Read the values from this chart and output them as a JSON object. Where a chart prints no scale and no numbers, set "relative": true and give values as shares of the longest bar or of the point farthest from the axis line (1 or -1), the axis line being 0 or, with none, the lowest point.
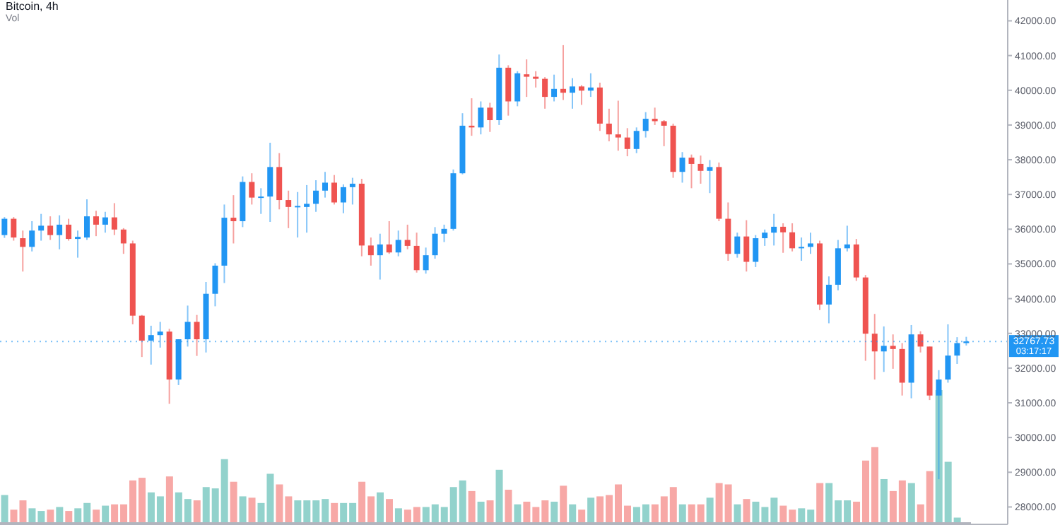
{
  "chart_data": [
    {
      "type": "candlestick",
      "title": "Bitcoin, 4h",
      "categories": [
        null,
        null,
        null,
        null,
        null,
        null,
        null,
        null,
        null,
        null,
        null,
        null,
        null,
        null,
        null,
        null,
        null,
        null,
        null,
        null,
        null,
        null,
        null,
        null,
        null,
        null,
        null,
        null,
        null,
        null,
        null,
        null,
        null,
        null,
        null,
        null,
        null,
        null,
        null,
        null,
        null,
        null,
        null,
        null,
        null,
        null,
        null,
        null,
        null,
        null,
        null,
        null,
        null,
        null,
        null,
        null,
        null,
        null,
        null,
        null,
        null,
        null,
        null,
        null,
        null,
        null,
        null,
        null,
        null,
        null,
        null,
        null,
        null,
        null,
        null,
        null,
        null,
        null,
        null,
        null,
        null,
        null,
        null,
        null,
        null,
        null,
        null,
        null,
        null,
        null,
        null,
        null,
        null,
        null,
        null,
        null,
        null,
        null,
        null,
        null,
        null,
        null,
        null,
        null,
        null,
        null
      ],
      "ohlc": [
        [
          35830,
          36350,
          35750,
          36300
        ],
        [
          36300,
          36350,
          35670,
          35760
        ],
        [
          35740,
          35960,
          34780,
          35490
        ],
        [
          35490,
          36230,
          35360,
          35960
        ],
        [
          35960,
          36440,
          35670,
          36100
        ],
        [
          36100,
          36370,
          35690,
          35830
        ],
        [
          35830,
          36400,
          35420,
          36130
        ],
        [
          36130,
          36300,
          35670,
          35720
        ],
        [
          35720,
          35960,
          35180,
          35780
        ],
        [
          35760,
          36860,
          35690,
          36370
        ],
        [
          36370,
          36530,
          35800,
          36130
        ],
        [
          36130,
          36500,
          35900,
          36340
        ],
        [
          36340,
          36750,
          35830,
          35990
        ],
        [
          35990,
          36030,
          35290,
          35590
        ],
        [
          35590,
          35670,
          33260,
          33510
        ],
        [
          33510,
          33530,
          32320,
          32790
        ],
        [
          32790,
          33220,
          32100,
          32950
        ],
        [
          32950,
          33330,
          32590,
          33050
        ],
        [
          33050,
          33130,
          30970,
          31670
        ],
        [
          31670,
          32830,
          31510,
          32830
        ],
        [
          32830,
          33800,
          32620,
          33330
        ],
        [
          33330,
          33530,
          32350,
          32830
        ],
        [
          32830,
          34480,
          32450,
          34140
        ],
        [
          34140,
          35020,
          33780,
          34950
        ],
        [
          34950,
          36710,
          34450,
          36330
        ],
        [
          36330,
          36980,
          35590,
          36230
        ],
        [
          36230,
          37520,
          36060,
          37360
        ],
        [
          37360,
          37610,
          36710,
          36910
        ],
        [
          36910,
          37180,
          36440,
          36940
        ],
        [
          36940,
          38490,
          36210,
          37790
        ],
        [
          37790,
          38190,
          36570,
          36840
        ],
        [
          36840,
          37110,
          36030,
          36640
        ],
        [
          36640,
          37070,
          35760,
          36670
        ],
        [
          36640,
          37270,
          35900,
          36730
        ],
        [
          36730,
          37410,
          36500,
          37110
        ],
        [
          37110,
          37650,
          36910,
          37340
        ],
        [
          37340,
          37560,
          36710,
          36770
        ],
        [
          36770,
          37290,
          36460,
          37210
        ],
        [
          37210,
          37480,
          36710,
          37310
        ],
        [
          37310,
          37450,
          35220,
          35530
        ],
        [
          35530,
          35760,
          34950,
          35250
        ],
        [
          35250,
          35870,
          34550,
          35560
        ],
        [
          35560,
          36230,
          35290,
          35330
        ],
        [
          35330,
          35960,
          35220,
          35690
        ],
        [
          35690,
          36130,
          35420,
          35520
        ],
        [
          35520,
          35900,
          34750,
          34820
        ],
        [
          34820,
          35470,
          34720,
          35250
        ],
        [
          35250,
          36060,
          35150,
          35870
        ],
        [
          35870,
          36130,
          35630,
          36010
        ],
        [
          36010,
          37720,
          35960,
          37610
        ],
        [
          37610,
          39340,
          37580,
          38980
        ],
        [
          38980,
          39770,
          38690,
          38930
        ],
        [
          38930,
          39680,
          38730,
          39500
        ],
        [
          39500,
          39640,
          38800,
          39140
        ],
        [
          39140,
          41030,
          39000,
          40650
        ],
        [
          40650,
          40720,
          39270,
          39680
        ],
        [
          39680,
          40550,
          39540,
          40490
        ],
        [
          40460,
          40890,
          39810,
          40390
        ],
        [
          40390,
          40550,
          40080,
          40330
        ],
        [
          40330,
          40380,
          39470,
          39810
        ],
        [
          39810,
          40450,
          39680,
          40040
        ],
        [
          40040,
          41300,
          39720,
          39930
        ],
        [
          39930,
          40350,
          39470,
          40110
        ],
        [
          40110,
          40150,
          39580,
          39990
        ],
        [
          39990,
          40490,
          39810,
          40080
        ],
        [
          40080,
          40220,
          38830,
          39040
        ],
        [
          39040,
          39470,
          38530,
          38730
        ],
        [
          38730,
          39700,
          38260,
          38640
        ],
        [
          38640,
          38910,
          38100,
          38310
        ],
        [
          38310,
          38930,
          38190,
          38830
        ],
        [
          38830,
          39370,
          38640,
          39180
        ],
        [
          39180,
          39500,
          39000,
          39110
        ],
        [
          39110,
          39140,
          38390,
          38980
        ],
        [
          38980,
          39040,
          37480,
          37650
        ],
        [
          37650,
          38220,
          37340,
          38060
        ],
        [
          38060,
          38150,
          37180,
          37880
        ],
        [
          37880,
          38120,
          37310,
          37680
        ],
        [
          37680,
          37990,
          37040,
          37790
        ],
        [
          37790,
          37920,
          36230,
          36300
        ],
        [
          36300,
          36770,
          35090,
          35290
        ],
        [
          35290,
          35900,
          35180,
          35790
        ],
        [
          35790,
          36260,
          34780,
          35060
        ],
        [
          35060,
          35830,
          34910,
          35740
        ],
        [
          35740,
          35990,
          35520,
          35900
        ],
        [
          35900,
          36440,
          35530,
          36070
        ],
        [
          36070,
          36170,
          35320,
          35910
        ],
        [
          35910,
          36170,
          35360,
          35450
        ],
        [
          35450,
          35760,
          35090,
          35490
        ],
        [
          35490,
          35900,
          35290,
          35590
        ],
        [
          35590,
          35670,
          33670,
          33830
        ],
        [
          33830,
          34640,
          33290,
          34400
        ],
        [
          34400,
          35690,
          34240,
          35450
        ],
        [
          35450,
          36100,
          35360,
          35560
        ],
        [
          35560,
          35720,
          34510,
          34610
        ],
        [
          34610,
          34680,
          32210,
          32990
        ],
        [
          32990,
          33560,
          31670,
          32480
        ],
        [
          32480,
          33200,
          31890,
          32640
        ],
        [
          32640,
          32970,
          31980,
          32550
        ],
        [
          32550,
          32720,
          31210,
          31580
        ],
        [
          31580,
          33240,
          31130,
          32970
        ],
        [
          32970,
          33060,
          32450,
          32620
        ],
        [
          32620,
          32620,
          31080,
          31210
        ],
        [
          31210,
          31940,
          28800,
          31670
        ],
        [
          31670,
          33260,
          31580,
          32360
        ],
        [
          32360,
          32890,
          32120,
          32720
        ],
        [
          32720,
          32900,
          32650,
          32767.73
        ]
      ],
      "colors": [
        "#2196f3",
        "#ef5350",
        "#ef5350",
        "#2196f3",
        "#2196f3",
        "#ef5350",
        "#2196f3",
        "#ef5350",
        "#2196f3",
        "#2196f3",
        "#ef5350",
        "#2196f3",
        "#ef5350",
        "#ef5350",
        "#ef5350",
        "#ef5350",
        "#2196f3",
        "#2196f3",
        "#ef5350",
        "#2196f3",
        "#2196f3",
        "#ef5350",
        "#2196f3",
        "#2196f3",
        "#2196f3",
        "#ef5350",
        "#2196f3",
        "#ef5350",
        "#2196f3",
        "#2196f3",
        "#ef5350",
        "#ef5350",
        "#2196f3",
        "#2196f3",
        "#2196f3",
        "#2196f3",
        "#ef5350",
        "#2196f3",
        "#2196f3",
        "#ef5350",
        "#ef5350",
        "#2196f3",
        "#ef5350",
        "#2196f3",
        "#ef5350",
        "#ef5350",
        "#2196f3",
        "#2196f3",
        "#2196f3",
        "#2196f3",
        "#2196f3",
        "#ef5350",
        "#2196f3",
        "#ef5350",
        "#2196f3",
        "#ef5350",
        "#2196f3",
        "#ef5350",
        "#ef5350",
        "#ef5350",
        "#2196f3",
        "#ef5350",
        "#2196f3",
        "#ef5350",
        "#2196f3",
        "#ef5350",
        "#ef5350",
        "#ef5350",
        "#ef5350",
        "#2196f3",
        "#2196f3",
        "#ef5350",
        "#ef5350",
        "#ef5350",
        "#2196f3",
        "#ef5350",
        "#ef5350",
        "#2196f3",
        "#ef5350",
        "#ef5350",
        "#2196f3",
        "#ef5350",
        "#2196f3",
        "#2196f3",
        "#2196f3",
        "#ef5350",
        "#ef5350",
        "#2196f3",
        "#2196f3",
        "#ef5350",
        "#2196f3",
        "#2196f3",
        "#2196f3",
        "#ef5350",
        "#ef5350",
        "#ef5350",
        "#2196f3",
        "#ef5350",
        "#ef5350",
        "#2196f3",
        "#ef5350",
        "#ef5350",
        "#2196f3",
        "#2196f3",
        "#2196f3",
        "#2196f3"
      ],
      "ylim": [
        27500,
        42600
      ],
      "yticks": [
        {
          "value": 28000,
          "label": "28000.00"
        },
        {
          "value": 29000,
          "label": "29000.00"
        },
        {
          "value": 30000,
          "label": "30000.00"
        },
        {
          "value": 31000,
          "label": "31000.00"
        },
        {
          "value": 32000,
          "label": "32000.00"
        },
        {
          "value": 33000,
          "label": "33000.00"
        },
        {
          "value": 34000,
          "label": "34000.00"
        },
        {
          "value": 35000,
          "label": "35000.00"
        },
        {
          "value": 36000,
          "label": "36000.00"
        },
        {
          "value": 37000,
          "label": "37000.00"
        },
        {
          "value": 38000,
          "label": "38000.00"
        },
        {
          "value": 39000,
          "label": "39000.00"
        },
        {
          "value": 40000,
          "label": "40000.00"
        },
        {
          "value": 41000,
          "label": "41000.00"
        },
        {
          "value": 42000,
          "label": "42000.00"
        }
      ],
      "ref_lines": [
        {
          "axis": "y",
          "value": 32767.73,
          "label": "32767.73",
          "color": "#2196f3",
          "line_style": "dotted"
        }
      ],
      "annotations": [
        "03:17:17"
      ],
      "tick_labels": "y"
    },
    {
      "type": "bar",
      "title": "Vol",
      "relative": true,
      "tick_labels": false,
      "categories": [
        null,
        null,
        null,
        null,
        null,
        null,
        null,
        null,
        null,
        null,
        null,
        null,
        null,
        null,
        null,
        null,
        null,
        null,
        null,
        null,
        null,
        null,
        null,
        null,
        null,
        null,
        null,
        null,
        null,
        null,
        null,
        null,
        null,
        null,
        null,
        null,
        null,
        null,
        null,
        null,
        null,
        null,
        null,
        null,
        null,
        null,
        null,
        null,
        null,
        null,
        null,
        null,
        null,
        null,
        null,
        null,
        null,
        null,
        null,
        null,
        null,
        null,
        null,
        null,
        null,
        null,
        null,
        null,
        null,
        null,
        null,
        null,
        null,
        null,
        null,
        null,
        null,
        null,
        null,
        null,
        null,
        null,
        null,
        null,
        null,
        null,
        null,
        null,
        null,
        null,
        null,
        null,
        null,
        null,
        null,
        null,
        null,
        null,
        null,
        null,
        null,
        null,
        null,
        null,
        null,
        null
      ],
      "values": [
        0.21,
        0.1,
        0.17,
        0.11,
        0.09,
        0.1,
        0.12,
        0.09,
        0.11,
        0.15,
        0.1,
        0.13,
        0.14,
        0.14,
        0.32,
        0.34,
        0.23,
        0.2,
        0.35,
        0.23,
        0.18,
        0.17,
        0.27,
        0.26,
        0.48,
        0.31,
        0.2,
        0.19,
        0.15,
        0.37,
        0.29,
        0.2,
        0.17,
        0.17,
        0.17,
        0.18,
        0.15,
        0.15,
        0.15,
        0.31,
        0.2,
        0.23,
        0.18,
        0.11,
        0.1,
        0.12,
        0.12,
        0.14,
        0.12,
        0.27,
        0.32,
        0.24,
        0.16,
        0.17,
        0.4,
        0.25,
        0.14,
        0.16,
        0.12,
        0.17,
        0.16,
        0.28,
        0.14,
        0.1,
        0.19,
        0.2,
        0.21,
        0.29,
        0.13,
        0.12,
        0.14,
        0.14,
        0.2,
        0.27,
        0.14,
        0.14,
        0.14,
        0.19,
        0.3,
        0.29,
        0.14,
        0.18,
        0.16,
        0.12,
        0.19,
        0.13,
        0.1,
        0.11,
        0.1,
        0.3,
        0.3,
        0.17,
        0.17,
        0.16,
        0.47,
        0.57,
        0.33,
        0.24,
        0.32,
        0.3,
        0.14,
        0.39,
        1,
        0.46,
        0.04,
        null
      ],
      "colors": [
        "#92d2cc",
        "#f7a8a6",
        "#f7a8a6",
        "#92d2cc",
        "#92d2cc",
        "#f7a8a6",
        "#92d2cc",
        "#f7a8a6",
        "#92d2cc",
        "#92d2cc",
        "#f7a8a6",
        "#92d2cc",
        "#f7a8a6",
        "#f7a8a6",
        "#f7a8a6",
        "#f7a8a6",
        "#92d2cc",
        "#92d2cc",
        "#f7a8a6",
        "#92d2cc",
        "#92d2cc",
        "#f7a8a6",
        "#92d2cc",
        "#92d2cc",
        "#92d2cc",
        "#f7a8a6",
        "#92d2cc",
        "#f7a8a6",
        "#92d2cc",
        "#92d2cc",
        "#f7a8a6",
        "#f7a8a6",
        "#92d2cc",
        "#92d2cc",
        "#92d2cc",
        "#92d2cc",
        "#f7a8a6",
        "#92d2cc",
        "#92d2cc",
        "#f7a8a6",
        "#f7a8a6",
        "#92d2cc",
        "#f7a8a6",
        "#92d2cc",
        "#f7a8a6",
        "#f7a8a6",
        "#92d2cc",
        "#92d2cc",
        "#92d2cc",
        "#92d2cc",
        "#92d2cc",
        "#f7a8a6",
        "#92d2cc",
        "#f7a8a6",
        "#92d2cc",
        "#f7a8a6",
        "#92d2cc",
        "#f7a8a6",
        "#f7a8a6",
        "#f7a8a6",
        "#92d2cc",
        "#f7a8a6",
        "#92d2cc",
        "#f7a8a6",
        "#92d2cc",
        "#f7a8a6",
        "#f7a8a6",
        "#f7a8a6",
        "#f7a8a6",
        "#92d2cc",
        "#92d2cc",
        "#f7a8a6",
        "#f7a8a6",
        "#f7a8a6",
        "#92d2cc",
        "#f7a8a6",
        "#f7a8a6",
        "#92d2cc",
        "#f7a8a6",
        "#f7a8a6",
        "#92d2cc",
        "#f7a8a6",
        "#92d2cc",
        "#92d2cc",
        "#92d2cc",
        "#f7a8a6",
        "#f7a8a6",
        "#92d2cc",
        "#92d2cc",
        "#f7a8a6",
        "#92d2cc",
        "#92d2cc",
        "#92d2cc",
        "#f7a8a6",
        "#f7a8a6",
        "#f7a8a6",
        "#92d2cc",
        "#f7a8a6",
        "#f7a8a6",
        "#92d2cc",
        "#f7a8a6",
        "#f7a8a6",
        "#92d2cc",
        "#92d2cc",
        "#92d2cc",
        "#92d2cc"
      ]
    }
  ]
}
